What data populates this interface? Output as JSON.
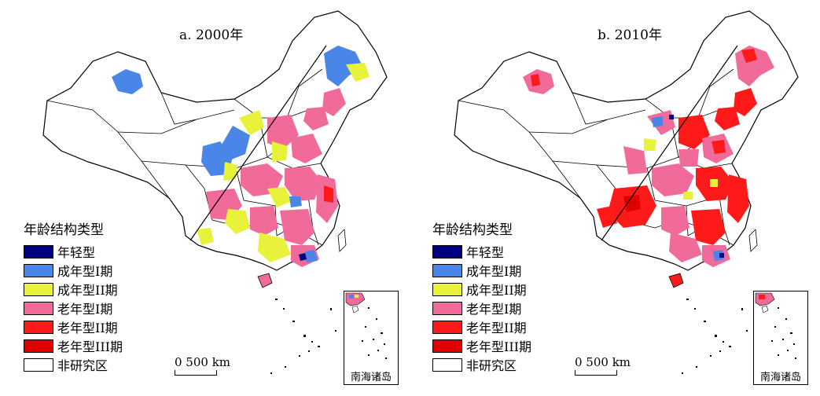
{
  "panels": [
    {
      "title": "a. 2000年"
    },
    {
      "title": "b. 2010年"
    }
  ],
  "legend": {
    "title": "年龄结构类型",
    "items": [
      {
        "label": "年轻型",
        "color": "#000080"
      },
      {
        "label": "成年型I期",
        "color": "#4a86e8"
      },
      {
        "label": "成年型II期",
        "color": "#e8f23a"
      },
      {
        "label": "老年型I期",
        "color": "#f06a9a"
      },
      {
        "label": "老年型II期",
        "color": "#ff1a1a"
      },
      {
        "label": "老年型III期",
        "color": "#e00000"
      },
      {
        "label": "非研究区",
        "color": "#ffffff"
      }
    ]
  },
  "scale_label": "0   500 km",
  "inset_label": "南海诸岛"
}
